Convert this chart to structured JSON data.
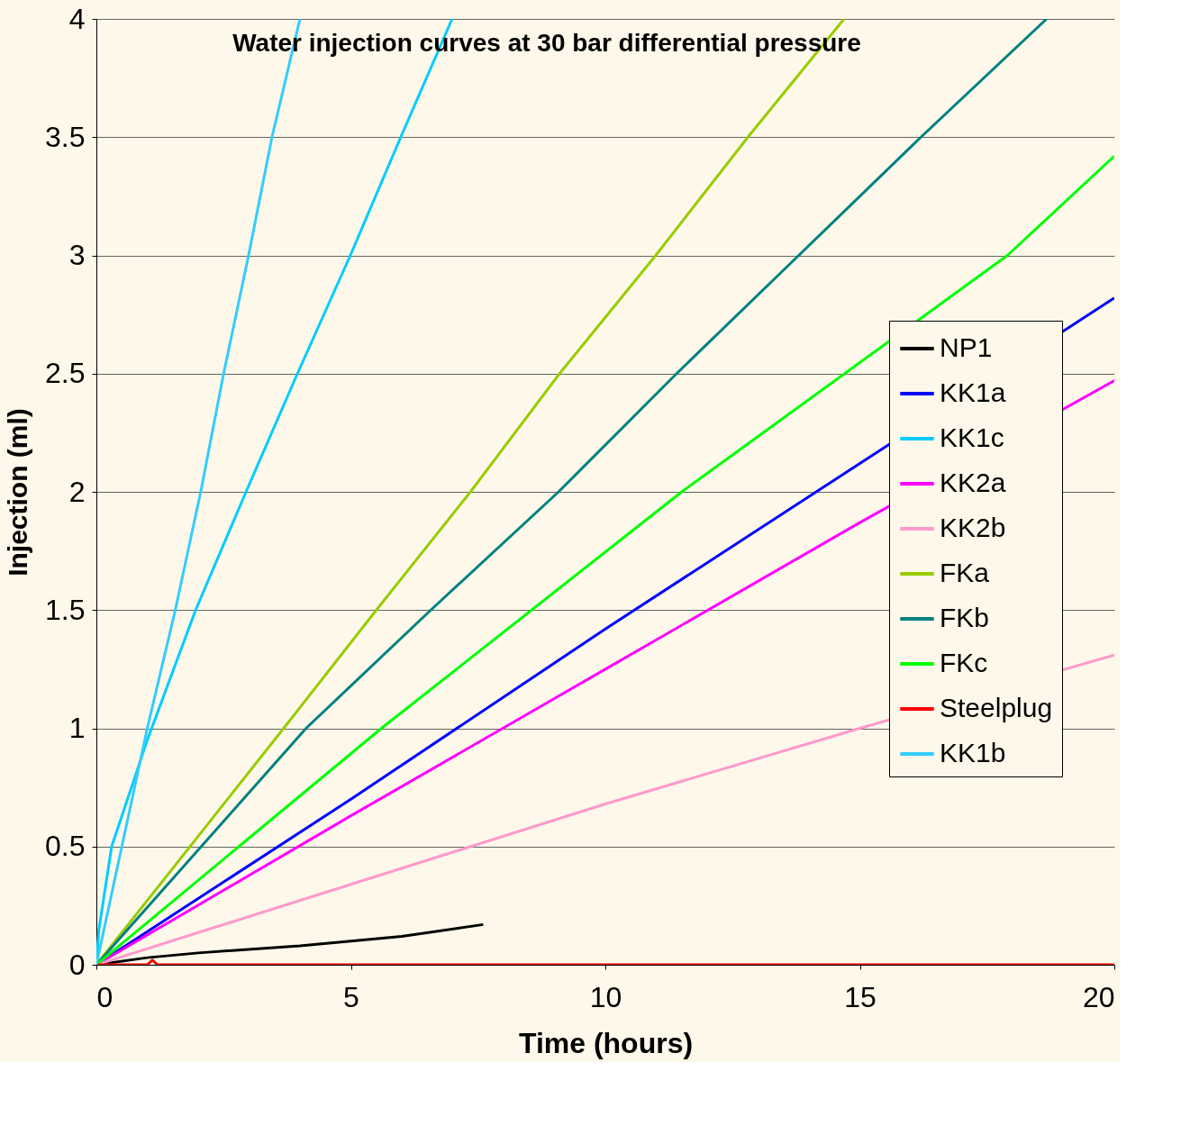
{
  "chart_data": {
    "type": "line",
    "title": "Water injection curves at 30 bar differential pressure",
    "xlabel": "Time (hours)",
    "ylabel": "Injection (ml)",
    "xlim": [
      0,
      20
    ],
    "ylim": [
      0,
      4
    ],
    "xticks": [
      0,
      5,
      10,
      15,
      20
    ],
    "yticks": [
      0,
      0.5,
      1,
      1.5,
      2,
      2.5,
      3,
      3.5,
      4
    ],
    "grid": "y",
    "legend": "right",
    "marker": "none",
    "line_style": "solid",
    "series": [
      {
        "name": "NP1",
        "color": "#000000",
        "x": [
          0,
          1,
          2,
          4,
          6,
          7.6
        ],
        "values": [
          0,
          0.03,
          0.05,
          0.08,
          0.12,
          0.17
        ]
      },
      {
        "name": "KK1a",
        "color": "#0000ff",
        "x": [
          0,
          5,
          10,
          15,
          20
        ],
        "values": [
          0,
          0.7,
          1.42,
          2.12,
          2.82
        ]
      },
      {
        "name": "KK1c",
        "color": "#00ccff",
        "x": [
          0,
          0.05,
          0.3,
          1,
          1.95,
          2.94,
          3.95,
          4.99,
          5.98,
          6.99
        ],
        "values": [
          0,
          0.15,
          0.5,
          0.95,
          1.5,
          2,
          2.5,
          3,
          3.5,
          4
        ]
      },
      {
        "name": "KK2a",
        "color": "#ff00ff",
        "x": [
          0,
          5,
          10,
          15,
          20
        ],
        "values": [
          0,
          0.63,
          1.25,
          1.87,
          2.47
        ]
      },
      {
        "name": "KK2b",
        "color": "#ff99cc",
        "x": [
          0,
          5,
          10,
          15,
          20
        ],
        "values": [
          0,
          0.34,
          0.68,
          1.0,
          1.31
        ]
      },
      {
        "name": "FKa",
        "color": "#99cc00",
        "x": [
          0,
          3.68,
          5.5,
          7.35,
          9.1,
          10.99,
          12.8,
          14.69
        ],
        "values": [
          0,
          1,
          1.5,
          2,
          2.5,
          3,
          3.5,
          4
        ]
      },
      {
        "name": "FKb",
        "color": "#008080",
        "x": [
          0,
          4.12,
          6.57,
          9.08,
          11.4,
          13.8,
          16.2,
          18.67
        ],
        "values": [
          0,
          1,
          1.5,
          2,
          2.5,
          3,
          3.5,
          4
        ]
      },
      {
        "name": "FKc",
        "color": "#00ff00",
        "x": [
          0,
          5.6,
          11.5,
          17.9,
          20
        ],
        "values": [
          0,
          1,
          2,
          3,
          3.42
        ]
      },
      {
        "name": "Steelplug",
        "color": "#ff0000",
        "x": [
          0,
          1,
          1.1,
          1.2,
          20
        ],
        "values": [
          0,
          0,
          0.02,
          0,
          0
        ]
      },
      {
        "name": "KK1b",
        "color": "#33ccff",
        "x": [
          0,
          0.5,
          1,
          1.55,
          2.05,
          2.5,
          2.99,
          3.45,
          4.0
        ],
        "values": [
          0,
          0.5,
          1.0,
          1.5,
          2.0,
          2.5,
          3.0,
          3.5,
          4.0
        ]
      }
    ]
  }
}
